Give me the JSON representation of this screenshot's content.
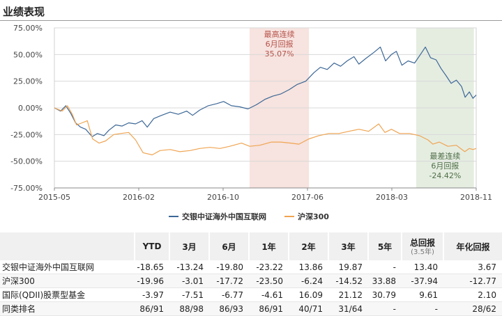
{
  "section_title": "业绩表现",
  "chart_data": {
    "type": "line",
    "x_ticks": [
      "2015-05",
      "2016-02",
      "2016-10",
      "2017-06",
      "2018-03",
      "2018-11"
    ],
    "y_ticks": [
      "75.00%",
      "50.00%",
      "25.00%",
      "0.00%",
      "-25.00%",
      "-50.00%",
      "-75.00%"
    ],
    "ylim": [
      -75,
      75
    ],
    "xlim": [
      "2015-05-01",
      "2018-11-15"
    ],
    "grid": true,
    "legend_position": "bottom",
    "series": [
      {
        "name": "交银中证海外中国互联网",
        "color": "#3c6796",
        "points": [
          [
            "2015-05-01",
            0
          ],
          [
            "2015-05-20",
            -3
          ],
          [
            "2015-06-05",
            2
          ],
          [
            "2015-06-20",
            -5
          ],
          [
            "2015-07-05",
            -14
          ],
          [
            "2015-07-20",
            -18
          ],
          [
            "2015-08-05",
            -20
          ],
          [
            "2015-08-25",
            -27
          ],
          [
            "2015-09-10",
            -24
          ],
          [
            "2015-09-30",
            -26
          ],
          [
            "2015-10-15",
            -21
          ],
          [
            "2015-11-05",
            -16
          ],
          [
            "2015-11-25",
            -17
          ],
          [
            "2015-12-15",
            -14
          ],
          [
            "2016-01-05",
            -15
          ],
          [
            "2016-01-25",
            -12
          ],
          [
            "2016-02-10",
            -18
          ],
          [
            "2016-03-01",
            -10
          ],
          [
            "2016-03-25",
            -7
          ],
          [
            "2016-04-20",
            -4
          ],
          [
            "2016-05-15",
            -6
          ],
          [
            "2016-06-10",
            -3
          ],
          [
            "2016-06-28",
            -7
          ],
          [
            "2016-07-20",
            -2
          ],
          [
            "2016-08-15",
            2
          ],
          [
            "2016-09-10",
            4
          ],
          [
            "2016-10-01",
            6
          ],
          [
            "2016-10-25",
            2
          ],
          [
            "2016-11-20",
            1
          ],
          [
            "2016-12-15",
            -1
          ],
          [
            "2017-01-10",
            3
          ],
          [
            "2017-02-05",
            8
          ],
          [
            "2017-03-01",
            11
          ],
          [
            "2017-03-25",
            13
          ],
          [
            "2017-04-20",
            17
          ],
          [
            "2017-05-15",
            22
          ],
          [
            "2017-06-10",
            25
          ],
          [
            "2017-07-05",
            33
          ],
          [
            "2017-07-25",
            38
          ],
          [
            "2017-08-15",
            36
          ],
          [
            "2017-09-05",
            42
          ],
          [
            "2017-09-25",
            39
          ],
          [
            "2017-10-15",
            44
          ],
          [
            "2017-11-05",
            48
          ],
          [
            "2017-11-20",
            41
          ],
          [
            "2017-12-10",
            46
          ],
          [
            "2018-01-05",
            52
          ],
          [
            "2018-01-25",
            57
          ],
          [
            "2018-02-10",
            44
          ],
          [
            "2018-02-28",
            50
          ],
          [
            "2018-03-15",
            53
          ],
          [
            "2018-04-01",
            40
          ],
          [
            "2018-04-20",
            44
          ],
          [
            "2018-05-10",
            42
          ],
          [
            "2018-05-30",
            51
          ],
          [
            "2018-06-12",
            57
          ],
          [
            "2018-06-28",
            47
          ],
          [
            "2018-07-15",
            45
          ],
          [
            "2018-07-30",
            37
          ],
          [
            "2018-08-15",
            30
          ],
          [
            "2018-08-30",
            23
          ],
          [
            "2018-09-15",
            26
          ],
          [
            "2018-10-01",
            20
          ],
          [
            "2018-10-12",
            10
          ],
          [
            "2018-10-25",
            15
          ],
          [
            "2018-11-05",
            9
          ],
          [
            "2018-11-15",
            12
          ]
        ]
      },
      {
        "name": "沪深300",
        "color": "#f0a451",
        "points": [
          [
            "2015-05-01",
            0
          ],
          [
            "2015-05-25",
            -3
          ],
          [
            "2015-06-10",
            2
          ],
          [
            "2015-06-25",
            -6
          ],
          [
            "2015-07-08",
            -16
          ],
          [
            "2015-07-25",
            -14
          ],
          [
            "2015-08-10",
            -12
          ],
          [
            "2015-08-26",
            -29
          ],
          [
            "2015-09-15",
            -33
          ],
          [
            "2015-10-05",
            -31
          ],
          [
            "2015-10-30",
            -25
          ],
          [
            "2015-11-20",
            -24
          ],
          [
            "2015-12-15",
            -23
          ],
          [
            "2016-01-05",
            -30
          ],
          [
            "2016-01-28",
            -42
          ],
          [
            "2016-02-25",
            -44
          ],
          [
            "2016-03-20",
            -40
          ],
          [
            "2016-04-20",
            -39
          ],
          [
            "2016-05-20",
            -41
          ],
          [
            "2016-06-20",
            -40
          ],
          [
            "2016-07-20",
            -38
          ],
          [
            "2016-08-20",
            -37
          ],
          [
            "2016-09-20",
            -38
          ],
          [
            "2016-10-20",
            -36
          ],
          [
            "2016-11-25",
            -33
          ],
          [
            "2016-12-20",
            -36
          ],
          [
            "2017-01-20",
            -35
          ],
          [
            "2017-02-25",
            -32
          ],
          [
            "2017-03-25",
            -32
          ],
          [
            "2017-04-25",
            -33
          ],
          [
            "2017-05-20",
            -34
          ],
          [
            "2017-06-20",
            -29
          ],
          [
            "2017-07-20",
            -26
          ],
          [
            "2017-08-20",
            -24
          ],
          [
            "2017-09-20",
            -24
          ],
          [
            "2017-10-20",
            -22
          ],
          [
            "2017-11-20",
            -20
          ],
          [
            "2017-12-20",
            -22
          ],
          [
            "2018-01-20",
            -15
          ],
          [
            "2018-02-08",
            -23
          ],
          [
            "2018-02-28",
            -20
          ],
          [
            "2018-03-25",
            -24
          ],
          [
            "2018-04-25",
            -24
          ],
          [
            "2018-05-25",
            -26
          ],
          [
            "2018-06-20",
            -30
          ],
          [
            "2018-07-05",
            -34
          ],
          [
            "2018-07-25",
            -32
          ],
          [
            "2018-08-20",
            -36
          ],
          [
            "2018-09-15",
            -35
          ],
          [
            "2018-10-11",
            -41
          ],
          [
            "2018-10-25",
            -38
          ],
          [
            "2018-11-05",
            -39
          ],
          [
            "2018-11-15",
            -38
          ]
        ]
      }
    ],
    "highlights": [
      {
        "name": "max-consecutive-6m-return",
        "from": "2016-12-20",
        "to": "2017-06-20",
        "fill": "#f7e3df",
        "text_color": "#b5524a",
        "lines": [
          "最高连续",
          "6月回报",
          "35.07%"
        ]
      },
      {
        "name": "worst-consecutive-6m-return",
        "from": "2018-05-15",
        "to": "2018-11-08",
        "fill": "#e5ede1",
        "text_color": "#4e6e47",
        "lines": [
          "最差连续",
          "6月回报",
          "-24.42%"
        ]
      }
    ]
  },
  "table": {
    "headers": [
      {
        "label": ""
      },
      {
        "label": "YTD"
      },
      {
        "label": "3月"
      },
      {
        "label": "6月"
      },
      {
        "label": "1年"
      },
      {
        "label": "2年"
      },
      {
        "label": "3年"
      },
      {
        "label": "5年"
      },
      {
        "label": "总回报",
        "sub": "(3.5年)"
      },
      {
        "label": "年化回报"
      }
    ],
    "rows": [
      [
        "交银中证海外中国互联网",
        "-18.65",
        "-13.24",
        "-19.80",
        "-23.22",
        "13.86",
        "19.87",
        "-",
        "13.40",
        "3.67"
      ],
      [
        "沪深300",
        "-19.96",
        "-3.01",
        "-17.72",
        "-23.50",
        "-6.24",
        "-14.52",
        "33.88",
        "-37.94",
        "-12.77"
      ],
      [
        "国际(QDII)股票型基金",
        "-3.97",
        "-7.51",
        "-6.77",
        "-4.61",
        "16.09",
        "21.12",
        "30.79",
        "9.61",
        "2.10"
      ],
      [
        "同类排名",
        "86/91",
        "88/98",
        "86/93",
        "86/91",
        "40/71",
        "31/64",
        "-",
        "-",
        "28/62"
      ]
    ]
  }
}
